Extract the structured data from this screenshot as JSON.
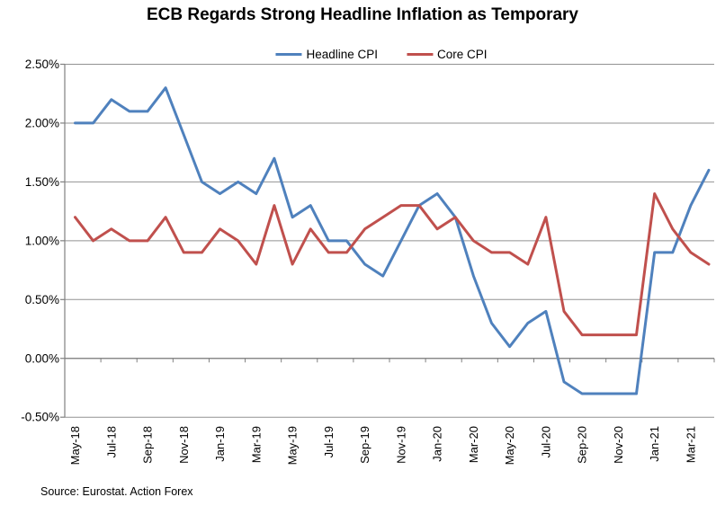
{
  "title": "ECB Regards Strong Headline Inflation as Temporary",
  "source": "Source: Eurostat. Action Forex",
  "legend": [
    {
      "label": "Headline CPI",
      "color": "#4F81BD"
    },
    {
      "label": "Core CPI",
      "color": "#C0504D"
    }
  ],
  "chart_data": {
    "type": "line",
    "title": "ECB Regards Strong Headline Inflation as Temporary",
    "categories": [
      "May-18",
      "Jun-18",
      "Jul-18",
      "Aug-18",
      "Sep-18",
      "Oct-18",
      "Nov-18",
      "Dec-18",
      "Jan-19",
      "Feb-19",
      "Mar-19",
      "Apr-19",
      "May-19",
      "Jun-19",
      "Jul-19",
      "Aug-19",
      "Sep-19",
      "Oct-19",
      "Nov-19",
      "Dec-19",
      "Jan-20",
      "Feb-20",
      "Mar-20",
      "Apr-20",
      "May-20",
      "Jun-20",
      "Jul-20",
      "Aug-20",
      "Sep-20",
      "Oct-20",
      "Nov-20",
      "Dec-20",
      "Jan-21",
      "Feb-21",
      "Mar-21",
      "Apr-21"
    ],
    "series": [
      {
        "name": "Headline CPI",
        "color": "#4F81BD",
        "values": [
          2.0,
          2.0,
          2.2,
          2.1,
          2.1,
          2.3,
          1.9,
          1.5,
          1.4,
          1.5,
          1.4,
          1.7,
          1.2,
          1.3,
          1.0,
          1.0,
          0.8,
          0.7,
          1.0,
          1.3,
          1.4,
          1.2,
          0.7,
          0.3,
          0.1,
          0.3,
          0.4,
          -0.2,
          -0.3,
          -0.3,
          -0.3,
          -0.3,
          0.9,
          0.9,
          1.3,
          1.6
        ]
      },
      {
        "name": "Core CPI",
        "color": "#C0504D",
        "values": [
          1.2,
          1.0,
          1.1,
          1.0,
          1.0,
          1.2,
          0.9,
          0.9,
          1.1,
          1.0,
          0.8,
          1.3,
          0.8,
          1.1,
          0.9,
          0.9,
          1.1,
          1.2,
          1.3,
          1.3,
          1.1,
          1.2,
          1.0,
          0.9,
          0.9,
          0.8,
          1.2,
          0.4,
          0.2,
          0.2,
          0.2,
          0.2,
          1.4,
          1.1,
          0.9,
          0.8
        ]
      }
    ],
    "ylim": [
      -0.5,
      2.5
    ],
    "ytick_step": 0.5,
    "ytick_labels": [
      "2.50%",
      "2.00%",
      "1.50%",
      "1.00%",
      "0.50%",
      "0.00%",
      "-0.50%"
    ],
    "x_tick_label_interval": 2,
    "grid": true,
    "legend_position": "top",
    "axis_color": "#808080",
    "grid_color": "#808080",
    "xlabel": "",
    "ylabel": ""
  }
}
